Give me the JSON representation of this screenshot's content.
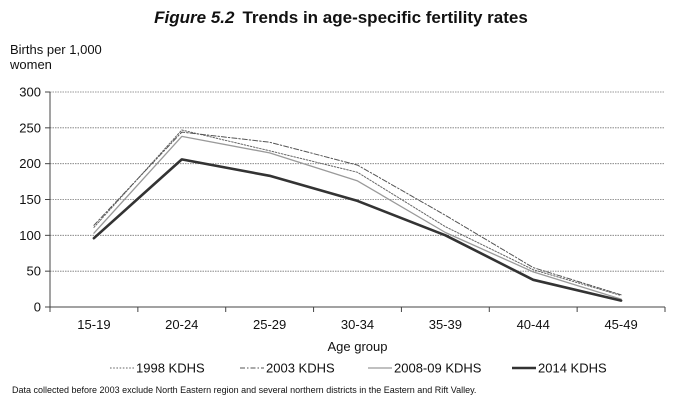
{
  "figure_label": "Figure 5.2",
  "figure_title": "Trends in age-specific fertility rates",
  "footnote": "Data collected before 2003 exclude North Eastern region and several northern districts in the Eastern and Rift Valley.",
  "chart_data": {
    "type": "line",
    "title": "Trends in age-specific fertility rates",
    "xlabel": "Age group",
    "ylabel": "Births per 1,000 women",
    "ylim": [
      0,
      300
    ],
    "yticks": [
      0,
      50,
      100,
      150,
      200,
      250,
      300
    ],
    "categories": [
      "15-19",
      "20-24",
      "25-29",
      "30-34",
      "35-39",
      "40-44",
      "45-49"
    ],
    "grid": "horizontal",
    "legend_position": "bottom",
    "series": [
      {
        "name": "1998 KDHS",
        "style": "dotted",
        "color": "#666666",
        "values": [
          111,
          247,
          218,
          188,
          112,
          52,
          16
        ]
      },
      {
        "name": "2003 KDHS",
        "style": "dashdot",
        "color": "#555555",
        "values": [
          114,
          244,
          230,
          198,
          128,
          55,
          17
        ]
      },
      {
        "name": "2008-09 KDHS",
        "style": "solid-thin",
        "color": "#9a9a9a",
        "values": [
          103,
          238,
          215,
          176,
          104,
          49,
          11
        ]
      },
      {
        "name": "2014 KDHS",
        "style": "solid-thick",
        "color": "#333333",
        "values": [
          96,
          206,
          183,
          148,
          100,
          38,
          9
        ]
      }
    ]
  }
}
